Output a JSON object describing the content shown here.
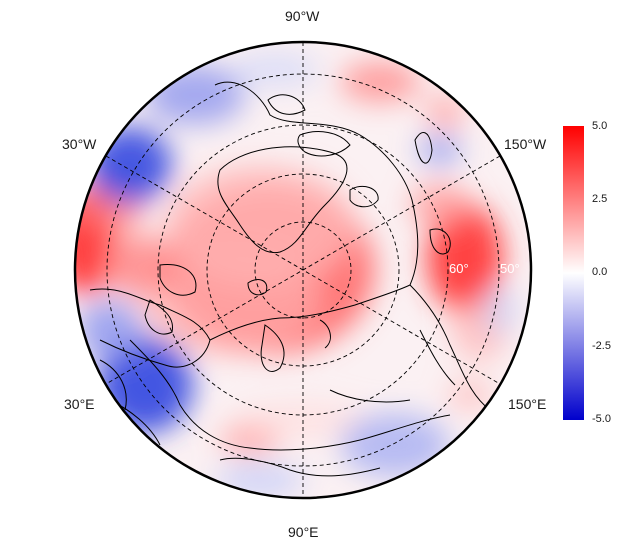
{
  "map": {
    "projection": "north-polar-stereographic",
    "longitude_labels": {
      "top": "90°W",
      "upper_left": "30°W",
      "upper_right": "150°W",
      "lower_left": "30°E",
      "lower_right": "150°E",
      "bottom": "90°E"
    },
    "latitude_labels": [
      "60°",
      "50°"
    ],
    "graticule_style": "dashed"
  },
  "colorbar": {
    "ticks": [
      "5.0",
      "2.5",
      "0.0",
      "-2.5",
      "-5.0"
    ],
    "range": [
      -5.0,
      5.0
    ],
    "colors": {
      "high": "#ff0000",
      "mid": "#ffffff",
      "low": "#0000cc"
    }
  }
}
